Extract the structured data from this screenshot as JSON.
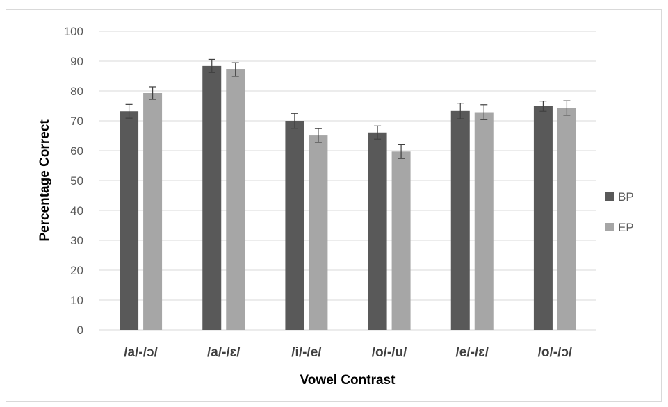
{
  "chart_data": {
    "type": "bar",
    "title": "",
    "xlabel": "Vowel Contrast",
    "ylabel": "Percentage Correct",
    "ylim": [
      0,
      100
    ],
    "yticks": [
      0,
      10,
      20,
      30,
      40,
      50,
      60,
      70,
      80,
      90,
      100
    ],
    "grid": true,
    "legend_position": "right",
    "categories": [
      "/a/-/ɔ/",
      "/a/-/ɛ/",
      "/i/-/e/",
      "/o/-/u/",
      "/e/-/ɛ/",
      "/o/-/ɔ/"
    ],
    "series": [
      {
        "name": "BP",
        "color": "#595959",
        "values": [
          73.2,
          88.4,
          70.0,
          66.1,
          73.3,
          74.9
        ],
        "errors": [
          2.3,
          2.2,
          2.5,
          2.2,
          2.6,
          1.7
        ]
      },
      {
        "name": "EP",
        "color": "#a6a6a6",
        "values": [
          79.3,
          87.2,
          65.1,
          59.7,
          72.9,
          74.3
        ],
        "errors": [
          2.1,
          2.3,
          2.3,
          2.3,
          2.5,
          2.4
        ]
      }
    ]
  }
}
